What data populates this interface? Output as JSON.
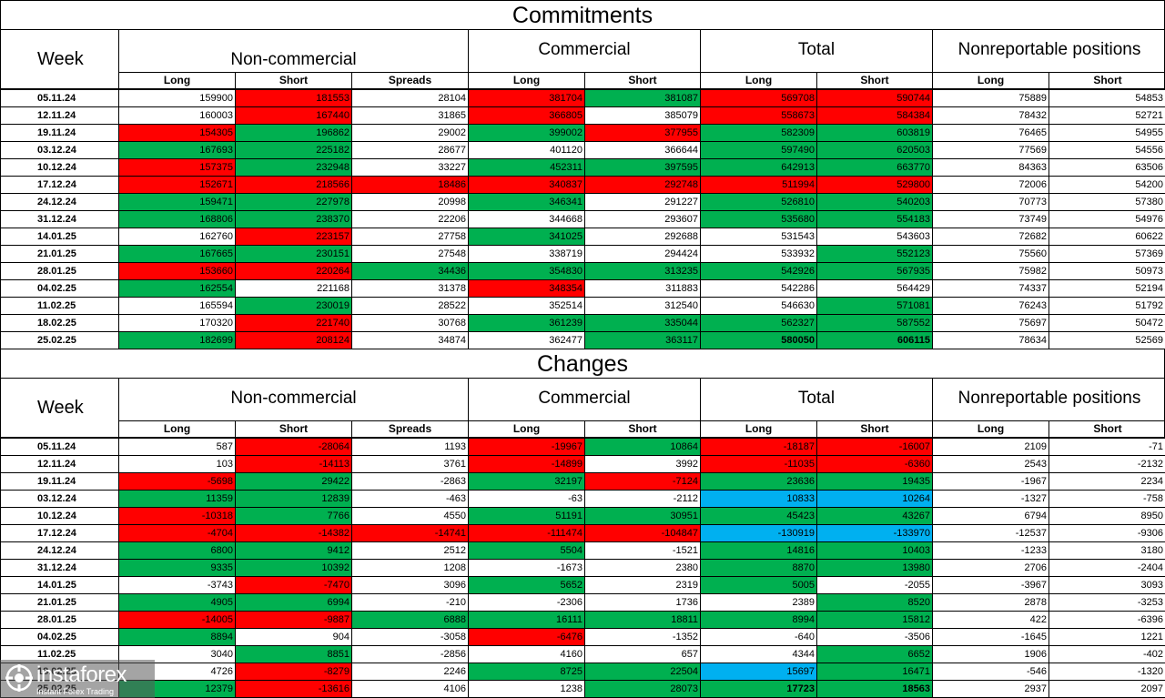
{
  "commitments": {
    "title": "Commitments",
    "week_label": "Week",
    "groups": [
      "Non-commercial",
      "Commercial",
      "Total",
      "Nonreportable positions"
    ],
    "sub_headers": [
      "Long",
      "Short",
      "Spreads",
      "Long",
      "Short",
      "Long",
      "Short",
      "Long",
      "Short"
    ],
    "rows": [
      {
        "week": "05.11.24",
        "cells": [
          "159900",
          "181553",
          "28104",
          "381704",
          "381087",
          "569708",
          "590744",
          "75889",
          "54853"
        ],
        "colors": [
          "",
          "red",
          "",
          "red",
          "grn",
          "red",
          "red",
          "",
          ""
        ]
      },
      {
        "week": "12.11.24",
        "cells": [
          "160003",
          "167440",
          "31865",
          "366805",
          "385079",
          "558673",
          "584384",
          "78432",
          "52721"
        ],
        "colors": [
          "",
          "red",
          "",
          "red",
          "",
          "red",
          "red",
          "",
          ""
        ]
      },
      {
        "week": "19.11.24",
        "cells": [
          "154305",
          "196862",
          "29002",
          "399002",
          "377955",
          "582309",
          "603819",
          "76465",
          "54955"
        ],
        "colors": [
          "red",
          "grn",
          "",
          "grn",
          "red",
          "grn",
          "grn",
          "",
          ""
        ]
      },
      {
        "week": "03.12.24",
        "cells": [
          "167693",
          "225182",
          "28677",
          "401120",
          "366644",
          "597490",
          "620503",
          "77569",
          "54556"
        ],
        "colors": [
          "grn",
          "grn",
          "",
          "",
          "",
          "grn",
          "grn",
          "",
          ""
        ]
      },
      {
        "week": "10.12.24",
        "cells": [
          "157375",
          "232948",
          "33227",
          "452311",
          "397595",
          "642913",
          "663770",
          "84363",
          "63506"
        ],
        "colors": [
          "red",
          "grn",
          "",
          "grn",
          "grn",
          "grn",
          "grn",
          "",
          ""
        ]
      },
      {
        "week": "17.12.24",
        "cells": [
          "152671",
          "218566",
          "18486",
          "340837",
          "292748",
          "511994",
          "529800",
          "72006",
          "54200"
        ],
        "colors": [
          "red",
          "red",
          "red",
          "red",
          "red",
          "red",
          "red",
          "",
          ""
        ]
      },
      {
        "week": "24.12.24",
        "cells": [
          "159471",
          "227978",
          "20998",
          "346341",
          "291227",
          "526810",
          "540203",
          "70773",
          "57380"
        ],
        "colors": [
          "grn",
          "grn",
          "",
          "grn",
          "",
          "grn",
          "grn",
          "",
          ""
        ]
      },
      {
        "week": "31.12.24",
        "cells": [
          "168806",
          "238370",
          "22206",
          "344668",
          "293607",
          "535680",
          "554183",
          "73749",
          "54976"
        ],
        "colors": [
          "grn",
          "grn",
          "",
          "",
          "",
          "grn",
          "grn",
          "",
          ""
        ]
      },
      {
        "week": "14.01.25",
        "cells": [
          "162760",
          "223157",
          "27758",
          "341025",
          "292688",
          "531543",
          "543603",
          "72682",
          "60622"
        ],
        "colors": [
          "",
          "red",
          "",
          "grn",
          "",
          "",
          "",
          "",
          ""
        ]
      },
      {
        "week": "21.01.25",
        "cells": [
          "167665",
          "230151",
          "27548",
          "338719",
          "294424",
          "533932",
          "552123",
          "75560",
          "57369"
        ],
        "colors": [
          "grn",
          "grn",
          "",
          "",
          "",
          "",
          "grn",
          "",
          ""
        ]
      },
      {
        "week": "28.01.25",
        "cells": [
          "153660",
          "220264",
          "34436",
          "354830",
          "313235",
          "542926",
          "567935",
          "75982",
          "50973"
        ],
        "colors": [
          "red",
          "red",
          "grn",
          "grn",
          "grn",
          "grn",
          "grn",
          "",
          ""
        ]
      },
      {
        "week": "04.02.25",
        "cells": [
          "162554",
          "221168",
          "31378",
          "348354",
          "311883",
          "542286",
          "564429",
          "74337",
          "52194"
        ],
        "colors": [
          "grn",
          "",
          "",
          "red",
          "",
          "",
          "",
          "",
          ""
        ]
      },
      {
        "week": "11.02.25",
        "cells": [
          "165594",
          "230019",
          "28522",
          "352514",
          "312540",
          "546630",
          "571081",
          "76243",
          "51792"
        ],
        "colors": [
          "",
          "grn",
          "",
          "",
          "",
          "",
          "grn",
          "",
          ""
        ]
      },
      {
        "week": "18.02.25",
        "cells": [
          "170320",
          "221740",
          "30768",
          "361239",
          "335044",
          "562327",
          "587552",
          "75697",
          "50472"
        ],
        "colors": [
          "",
          "red",
          "",
          "grn",
          "grn",
          "grn",
          "grn",
          "",
          ""
        ]
      },
      {
        "week": "25.02.25",
        "cells": [
          "182699",
          "208124",
          "34874",
          "362477",
          "363117",
          "580050",
          "606115",
          "78634",
          "52569"
        ],
        "colors": [
          "grn",
          "red",
          "",
          "",
          "grn",
          "grn",
          "grn",
          "",
          ""
        ],
        "bold": [
          5,
          6
        ]
      }
    ]
  },
  "changes": {
    "title": "Changes",
    "week_label": "Week",
    "groups": [
      "Non-commercial",
      "Commercial",
      "Total",
      "Nonreportable positions"
    ],
    "sub_headers": [
      "Long",
      "Short",
      "Spreads",
      "Long",
      "Short",
      "Long",
      "Short",
      "Long",
      "Short"
    ],
    "rows": [
      {
        "week": "05.11.24",
        "cells": [
          "587",
          "-28064",
          "1193",
          "-19967",
          "10864",
          "-18187",
          "-16007",
          "2109",
          "-71"
        ],
        "colors": [
          "",
          "red",
          "",
          "red",
          "grn",
          "red",
          "red",
          "",
          ""
        ]
      },
      {
        "week": "12.11.24",
        "cells": [
          "103",
          "-14113",
          "3761",
          "-14899",
          "3992",
          "-11035",
          "-6360",
          "2543",
          "-2132"
        ],
        "colors": [
          "",
          "red",
          "",
          "red",
          "",
          "red",
          "red",
          "",
          ""
        ]
      },
      {
        "week": "19.11.24",
        "cells": [
          "-5698",
          "29422",
          "-2863",
          "32197",
          "-7124",
          "23636",
          "19435",
          "-1967",
          "2234"
        ],
        "colors": [
          "red",
          "grn",
          "",
          "grn",
          "red",
          "grn",
          "grn",
          "",
          ""
        ]
      },
      {
        "week": "03.12.24",
        "cells": [
          "11359",
          "12839",
          "-463",
          "-63",
          "-2112",
          "10833",
          "10264",
          "-1327",
          "-758"
        ],
        "colors": [
          "grn",
          "grn",
          "",
          "",
          "",
          "blu",
          "blu",
          "",
          ""
        ]
      },
      {
        "week": "10.12.24",
        "cells": [
          "-10318",
          "7766",
          "4550",
          "51191",
          "30951",
          "45423",
          "43267",
          "6794",
          "8950"
        ],
        "colors": [
          "red",
          "grn",
          "",
          "grn",
          "grn",
          "grn",
          "grn",
          "",
          ""
        ]
      },
      {
        "week": "17.12.24",
        "cells": [
          "-4704",
          "-14382",
          "-14741",
          "-111474",
          "-104847",
          "-130919",
          "-133970",
          "-12537",
          "-9306"
        ],
        "colors": [
          "red",
          "red",
          "red",
          "red",
          "red",
          "blu",
          "blu",
          "",
          ""
        ]
      },
      {
        "week": "24.12.24",
        "cells": [
          "6800",
          "9412",
          "2512",
          "5504",
          "-1521",
          "14816",
          "10403",
          "-1233",
          "3180"
        ],
        "colors": [
          "grn",
          "grn",
          "",
          "grn",
          "",
          "grn",
          "grn",
          "",
          ""
        ]
      },
      {
        "week": "31.12.24",
        "cells": [
          "9335",
          "10392",
          "1208",
          "-1673",
          "2380",
          "8870",
          "13980",
          "2706",
          "-2404"
        ],
        "colors": [
          "grn",
          "grn",
          "",
          "",
          "",
          "grn",
          "grn",
          "",
          ""
        ]
      },
      {
        "week": "14.01.25",
        "cells": [
          "-3743",
          "-7470",
          "3096",
          "5652",
          "2319",
          "5005",
          "-2055",
          "-3967",
          "3093"
        ],
        "colors": [
          "",
          "red",
          "",
          "grn",
          "",
          "grn",
          "",
          "",
          ""
        ]
      },
      {
        "week": "21.01.25",
        "cells": [
          "4905",
          "6994",
          "-210",
          "-2306",
          "1736",
          "2389",
          "8520",
          "2878",
          "-3253"
        ],
        "colors": [
          "grn",
          "grn",
          "",
          "",
          "",
          "",
          "grn",
          "",
          ""
        ]
      },
      {
        "week": "28.01.25",
        "cells": [
          "-14005",
          "-9887",
          "6888",
          "16111",
          "18811",
          "8994",
          "15812",
          "422",
          "-6396"
        ],
        "colors": [
          "red",
          "red",
          "grn",
          "grn",
          "grn",
          "grn",
          "grn",
          "",
          ""
        ]
      },
      {
        "week": "04.02.25",
        "cells": [
          "8894",
          "904",
          "-3058",
          "-6476",
          "-1352",
          "-640",
          "-3506",
          "-1645",
          "1221"
        ],
        "colors": [
          "grn",
          "",
          "",
          "red",
          "",
          "",
          "",
          "",
          ""
        ]
      },
      {
        "week": "11.02.25",
        "cells": [
          "3040",
          "8851",
          "-2856",
          "4160",
          "657",
          "4344",
          "6652",
          "1906",
          "-402"
        ],
        "colors": [
          "",
          "grn",
          "",
          "",
          "",
          "",
          "grn",
          "",
          ""
        ]
      },
      {
        "week": "18.02.25",
        "cells": [
          "4726",
          "-8279",
          "2246",
          "8725",
          "22504",
          "15697",
          "16471",
          "-546",
          "-1320"
        ],
        "colors": [
          "",
          "red",
          "",
          "grn",
          "grn",
          "blu",
          "grn",
          "",
          ""
        ]
      },
      {
        "week": "25.02.25",
        "cells": [
          "12379",
          "-13616",
          "4106",
          "1238",
          "28073",
          "17723",
          "18563",
          "2937",
          "2097"
        ],
        "colors": [
          "grn",
          "red",
          "",
          "",
          "grn",
          "grn",
          "grn",
          "",
          ""
        ],
        "bold": [
          5,
          6
        ]
      }
    ]
  },
  "watermark": {
    "brand": "instaforex",
    "tagline": "Instant Forex Trading"
  },
  "colors": {
    "red": "#ff0000",
    "green": "#00b050",
    "blue": "#00b0f0"
  }
}
